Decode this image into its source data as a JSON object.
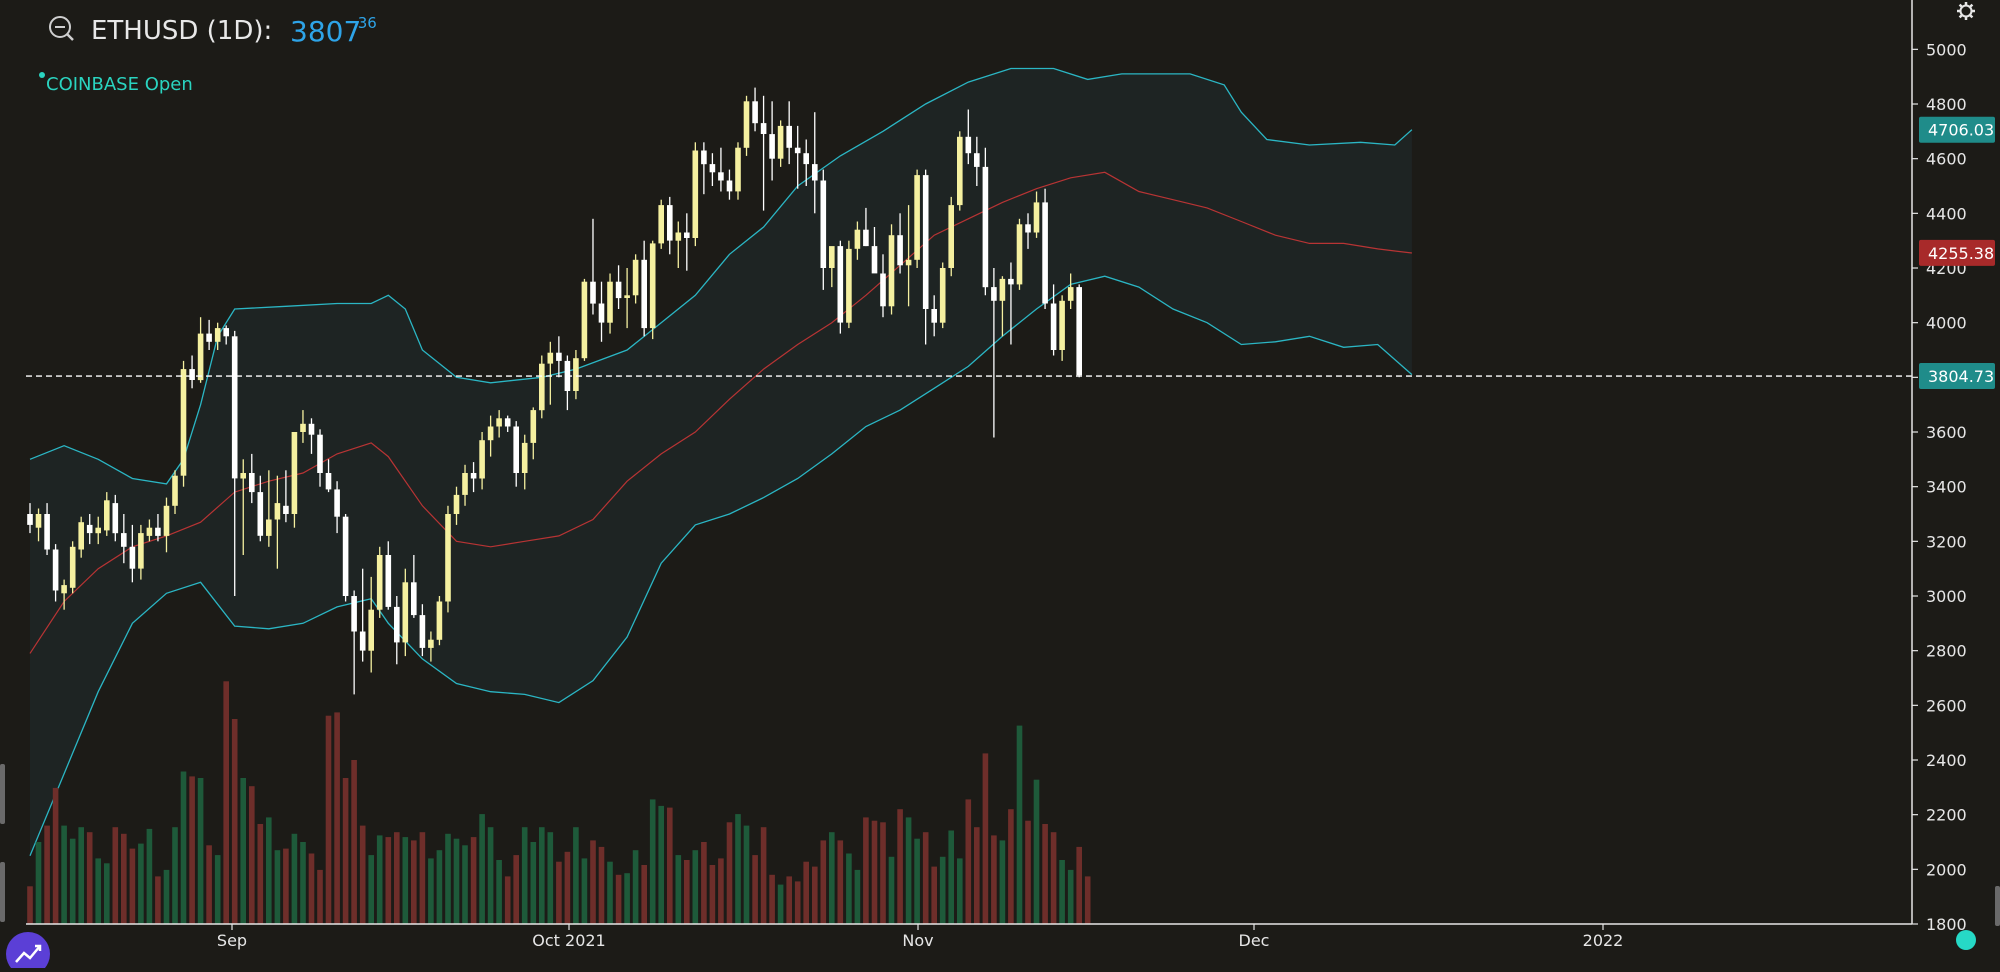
{
  "header": {
    "symbol_title": "ETHUSD (1D):",
    "price_main": "3807",
    "price_decimals": ".36",
    "exchange_label": "COINBASE Open"
  },
  "colors": {
    "background": "#1c1b17",
    "up_candle": "#f5f0a0",
    "down_candle": "#ffffff",
    "up_volume": "#1e5a3a",
    "down_volume": "#6e2e2a",
    "bollinger_band": "#2bb6c4",
    "bollinger_fill": "#1e2423",
    "middle_band": "#b83434",
    "last_price_line": "#ffffff",
    "upper_tag": "#1f8c8a",
    "middle_tag": "#a82a2a",
    "last_tag": "#1f8c8a"
  },
  "icons": {
    "zoom": "zoom-out-icon",
    "settings": "gear-icon",
    "trend": "trend-chart-icon",
    "status": "status-dot-icon"
  },
  "chart_data": {
    "type": "candlestick",
    "y_axis": {
      "ticks": [
        1800,
        2000,
        2200,
        2400,
        2600,
        2800,
        3000,
        3200,
        3400,
        3600,
        3800,
        4000,
        4200,
        4400,
        4600,
        4800,
        5000
      ],
      "range": [
        1800,
        5100
      ],
      "position": "right"
    },
    "x_axis": {
      "ticks": [
        "Sep",
        "Oct 2021",
        "Nov",
        "Dec",
        "2022"
      ]
    },
    "legend": "none",
    "grid": false,
    "price_tags": {
      "upper_band": "4706.03",
      "middle_band": "4255.38",
      "last": "3804.73"
    },
    "last_price_value": 3804.73,
    "candles_ohlc": [
      [
        3300,
        3340,
        3230,
        3260
      ],
      [
        3250,
        3320,
        3200,
        3300
      ],
      [
        3300,
        3340,
        3150,
        3170
      ],
      [
        3170,
        3190,
        2980,
        3020
      ],
      [
        3010,
        3060,
        2950,
        3040
      ],
      [
        3030,
        3200,
        3010,
        3180
      ],
      [
        3170,
        3290,
        3140,
        3270
      ],
      [
        3260,
        3300,
        3190,
        3230
      ],
      [
        3230,
        3290,
        3190,
        3250
      ],
      [
        3240,
        3380,
        3220,
        3350
      ],
      [
        3340,
        3370,
        3200,
        3230
      ],
      [
        3230,
        3300,
        3120,
        3180
      ],
      [
        3180,
        3260,
        3050,
        3100
      ],
      [
        3100,
        3260,
        3060,
        3230
      ],
      [
        3220,
        3280,
        3200,
        3250
      ],
      [
        3250,
        3300,
        3200,
        3220
      ],
      [
        3220,
        3360,
        3160,
        3330
      ],
      [
        3330,
        3460,
        3300,
        3440
      ],
      [
        3440,
        3860,
        3400,
        3830
      ],
      [
        3830,
        3880,
        3760,
        3790
      ],
      [
        3790,
        4020,
        3780,
        3960
      ],
      [
        3960,
        4010,
        3900,
        3930
      ],
      [
        3930,
        4000,
        3900,
        3980
      ],
      [
        3980,
        3990,
        3920,
        3950
      ],
      [
        3950,
        3970,
        3000,
        3430
      ],
      [
        3430,
        3500,
        3150,
        3450
      ],
      [
        3450,
        3520,
        3340,
        3380
      ],
      [
        3380,
        3440,
        3200,
        3220
      ],
      [
        3220,
        3460,
        3180,
        3280
      ],
      [
        3280,
        3440,
        3100,
        3340
      ],
      [
        3330,
        3460,
        3270,
        3300
      ],
      [
        3300,
        3500,
        3250,
        3600
      ],
      [
        3600,
        3680,
        3560,
        3630
      ],
      [
        3630,
        3650,
        3520,
        3590
      ],
      [
        3590,
        3610,
        3400,
        3450
      ],
      [
        3450,
        3500,
        3380,
        3390
      ],
      [
        3390,
        3420,
        3230,
        3290
      ],
      [
        3290,
        3300,
        2980,
        3000
      ],
      [
        3000,
        3020,
        2640,
        2870
      ],
      [
        2870,
        3100,
        2760,
        2800
      ],
      [
        2800,
        3070,
        2720,
        2950
      ],
      [
        2950,
        3180,
        2920,
        3150
      ],
      [
        3150,
        3200,
        2950,
        2960
      ],
      [
        2960,
        3000,
        2750,
        2830
      ],
      [
        2830,
        3100,
        2780,
        3050
      ],
      [
        3050,
        3150,
        2920,
        2930
      ],
      [
        2930,
        2970,
        2780,
        2810
      ],
      [
        2810,
        2870,
        2760,
        2840
      ],
      [
        2840,
        3000,
        2820,
        2980
      ],
      [
        2980,
        3330,
        2940,
        3300
      ],
      [
        3300,
        3400,
        3260,
        3370
      ],
      [
        3370,
        3480,
        3330,
        3450
      ],
      [
        3450,
        3490,
        3380,
        3430
      ],
      [
        3430,
        3600,
        3390,
        3570
      ],
      [
        3570,
        3660,
        3510,
        3620
      ],
      [
        3620,
        3680,
        3580,
        3650
      ],
      [
        3650,
        3660,
        3600,
        3620
      ],
      [
        3620,
        3640,
        3400,
        3450
      ],
      [
        3450,
        3590,
        3390,
        3560
      ],
      [
        3560,
        3690,
        3500,
        3680
      ],
      [
        3680,
        3880,
        3650,
        3850
      ],
      [
        3850,
        3930,
        3700,
        3890
      ],
      [
        3890,
        3950,
        3800,
        3860
      ],
      [
        3860,
        3880,
        3680,
        3750
      ],
      [
        3750,
        3900,
        3720,
        3870
      ],
      [
        3870,
        4160,
        3860,
        4150
      ],
      [
        4150,
        4380,
        4030,
        4070
      ],
      [
        4070,
        4150,
        3930,
        4000
      ],
      [
        4000,
        4180,
        3960,
        4150
      ],
      [
        4150,
        4210,
        4050,
        4090
      ],
      [
        4090,
        4200,
        3980,
        4100
      ],
      [
        4100,
        4250,
        4070,
        4230
      ],
      [
        4230,
        4300,
        3950,
        3980
      ],
      [
        3980,
        4300,
        3940,
        4290
      ],
      [
        4290,
        4450,
        4270,
        4430
      ],
      [
        4430,
        4460,
        4250,
        4300
      ],
      [
        4300,
        4370,
        4200,
        4330
      ],
      [
        4330,
        4400,
        4190,
        4310
      ],
      [
        4310,
        4660,
        4280,
        4630
      ],
      [
        4630,
        4660,
        4470,
        4580
      ],
      [
        4580,
        4620,
        4500,
        4550
      ],
      [
        4550,
        4640,
        4480,
        4520
      ],
      [
        4520,
        4560,
        4450,
        4480
      ],
      [
        4480,
        4660,
        4450,
        4640
      ],
      [
        4640,
        4830,
        4610,
        4810
      ],
      [
        4810,
        4860,
        4700,
        4730
      ],
      [
        4730,
        4830,
        4410,
        4690
      ],
      [
        4690,
        4810,
        4520,
        4600
      ],
      [
        4600,
        4740,
        4570,
        4720
      ],
      [
        4720,
        4810,
        4580,
        4640
      ],
      [
        4640,
        4720,
        4490,
        4620
      ],
      [
        4620,
        4670,
        4500,
        4580
      ],
      [
        4580,
        4770,
        4400,
        4520
      ],
      [
        4520,
        4560,
        4120,
        4200
      ],
      [
        4200,
        4260,
        4130,
        4280
      ],
      [
        4280,
        4300,
        3960,
        4000
      ],
      [
        4000,
        4300,
        3980,
        4270
      ],
      [
        4270,
        4370,
        4230,
        4340
      ],
      [
        4340,
        4420,
        4280,
        4280
      ],
      [
        4280,
        4350,
        4240,
        4180
      ],
      [
        4180,
        4250,
        4020,
        4060
      ],
      [
        4060,
        4360,
        4030,
        4320
      ],
      [
        4320,
        4400,
        4180,
        4210
      ],
      [
        4210,
        4430,
        4060,
        4230
      ],
      [
        4230,
        4560,
        4200,
        4540
      ],
      [
        4540,
        4560,
        3920,
        4050
      ],
      [
        4050,
        4100,
        3950,
        4000
      ],
      [
        4000,
        4220,
        3980,
        4200
      ],
      [
        4200,
        4460,
        4170,
        4430
      ],
      [
        4430,
        4700,
        4410,
        4680
      ],
      [
        4680,
        4780,
        4580,
        4620
      ],
      [
        4620,
        4680,
        4500,
        4570
      ],
      [
        4570,
        4640,
        4100,
        4130
      ],
      [
        4130,
        4200,
        3580,
        4080
      ],
      [
        4080,
        4170,
        3950,
        4160
      ],
      [
        4160,
        4220,
        3920,
        4140
      ],
      [
        4140,
        4380,
        4120,
        4360
      ],
      [
        4360,
        4400,
        4270,
        4330
      ],
      [
        4330,
        4480,
        4310,
        4440
      ],
      [
        4440,
        4490,
        4050,
        4070
      ],
      [
        4070,
        4140,
        3880,
        3900
      ],
      [
        3900,
        4100,
        3860,
        4080
      ],
      [
        4080,
        4180,
        4050,
        4130
      ],
      [
        4130,
        4140,
        3800,
        3807.36
      ]
    ],
    "volumes": [
      230,
      500,
      600,
      830,
      600,
      520,
      590,
      560,
      400,
      370,
      590,
      550,
      460,
      490,
      580,
      290,
      330,
      590,
      930,
      900,
      890,
      480,
      420,
      1480,
      1250,
      890,
      840,
      610,
      650,
      450,
      460,
      550,
      500,
      430,
      330,
      1270,
      1290,
      890,
      1000,
      600,
      420,
      540,
      530,
      560,
      530,
      510,
      560,
      400,
      450,
      550,
      520,
      480,
      530,
      670,
      590,
      390,
      290,
      420,
      590,
      500,
      590,
      560,
      380,
      440,
      590,
      400,
      510,
      470,
      380,
      300,
      310,
      450,
      360,
      760,
      720,
      710,
      420,
      390,
      450,
      500,
      360,
      400,
      620,
      670,
      600,
      420,
      590,
      300,
      240,
      290,
      260,
      380,
      350,
      510,
      560,
      510,
      430,
      330,
      650,
      630,
      620,
      410,
      700,
      650,
      520,
      560,
      350,
      410,
      570,
      400,
      760,
      590,
      1040,
      540,
      510,
      700,
      1210,
      630,
      880,
      610,
      560,
      390,
      330,
      470,
      290
    ],
    "volume_scale": {
      "max_units": 1500
    },
    "bollinger_upper": [
      [
        0,
        3500
      ],
      [
        4,
        3550
      ],
      [
        8,
        3500
      ],
      [
        12,
        3430
      ],
      [
        16,
        3410
      ],
      [
        18,
        3500
      ],
      [
        20,
        3700
      ],
      [
        22,
        3950
      ],
      [
        24,
        4050
      ],
      [
        30,
        4060
      ],
      [
        36,
        4070
      ],
      [
        40,
        4070
      ],
      [
        42,
        4100
      ],
      [
        44,
        4050
      ],
      [
        46,
        3900
      ],
      [
        50,
        3800
      ],
      [
        54,
        3780
      ],
      [
        60,
        3800
      ],
      [
        64,
        3830
      ],
      [
        70,
        3900
      ],
      [
        74,
        4000
      ],
      [
        78,
        4100
      ],
      [
        82,
        4250
      ],
      [
        86,
        4350
      ],
      [
        90,
        4500
      ],
      [
        95,
        4610
      ],
      [
        100,
        4700
      ],
      [
        105,
        4800
      ],
      [
        110,
        4880
      ],
      [
        115,
        4930
      ],
      [
        120,
        4930
      ],
      [
        124,
        4890
      ],
      [
        128,
        4910
      ],
      [
        136,
        4910
      ],
      [
        140,
        4870
      ],
      [
        142,
        4770
      ],
      [
        145,
        4670
      ],
      [
        150,
        4650
      ],
      [
        156,
        4660
      ],
      [
        160,
        4650
      ],
      [
        162,
        4706
      ]
    ],
    "bollinger_middle": [
      [
        0,
        2790
      ],
      [
        4,
        2980
      ],
      [
        8,
        3100
      ],
      [
        12,
        3180
      ],
      [
        16,
        3220
      ],
      [
        20,
        3270
      ],
      [
        24,
        3380
      ],
      [
        28,
        3420
      ],
      [
        32,
        3450
      ],
      [
        36,
        3520
      ],
      [
        40,
        3560
      ],
      [
        42,
        3510
      ],
      [
        46,
        3330
      ],
      [
        50,
        3200
      ],
      [
        54,
        3180
      ],
      [
        58,
        3200
      ],
      [
        62,
        3220
      ],
      [
        66,
        3280
      ],
      [
        70,
        3420
      ],
      [
        74,
        3520
      ],
      [
        78,
        3600
      ],
      [
        82,
        3720
      ],
      [
        86,
        3830
      ],
      [
        90,
        3920
      ],
      [
        94,
        4000
      ],
      [
        98,
        4100
      ],
      [
        102,
        4210
      ],
      [
        106,
        4320
      ],
      [
        110,
        4380
      ],
      [
        114,
        4440
      ],
      [
        118,
        4490
      ],
      [
        122,
        4530
      ],
      [
        126,
        4550
      ],
      [
        130,
        4480
      ],
      [
        134,
        4450
      ],
      [
        138,
        4420
      ],
      [
        142,
        4370
      ],
      [
        146,
        4320
      ],
      [
        150,
        4290
      ],
      [
        154,
        4290
      ],
      [
        158,
        4270
      ],
      [
        162,
        4255
      ]
    ],
    "bollinger_lower": [
      [
        0,
        2050
      ],
      [
        4,
        2350
      ],
      [
        8,
        2650
      ],
      [
        12,
        2900
      ],
      [
        16,
        3010
      ],
      [
        20,
        3050
      ],
      [
        24,
        2890
      ],
      [
        28,
        2880
      ],
      [
        32,
        2900
      ],
      [
        36,
        2960
      ],
      [
        40,
        2990
      ],
      [
        42,
        2900
      ],
      [
        46,
        2770
      ],
      [
        50,
        2680
      ],
      [
        54,
        2650
      ],
      [
        58,
        2640
      ],
      [
        62,
        2610
      ],
      [
        66,
        2690
      ],
      [
        70,
        2850
      ],
      [
        74,
        3120
      ],
      [
        78,
        3260
      ],
      [
        82,
        3300
      ],
      [
        86,
        3360
      ],
      [
        90,
        3430
      ],
      [
        94,
        3520
      ],
      [
        98,
        3620
      ],
      [
        102,
        3680
      ],
      [
        106,
        3760
      ],
      [
        110,
        3840
      ],
      [
        114,
        3950
      ],
      [
        118,
        4050
      ],
      [
        122,
        4140
      ],
      [
        126,
        4170
      ],
      [
        130,
        4130
      ],
      [
        134,
        4050
      ],
      [
        138,
        4000
      ],
      [
        142,
        3920
      ],
      [
        146,
        3930
      ],
      [
        150,
        3950
      ],
      [
        154,
        3910
      ],
      [
        158,
        3920
      ],
      [
        162,
        3810
      ]
    ]
  }
}
